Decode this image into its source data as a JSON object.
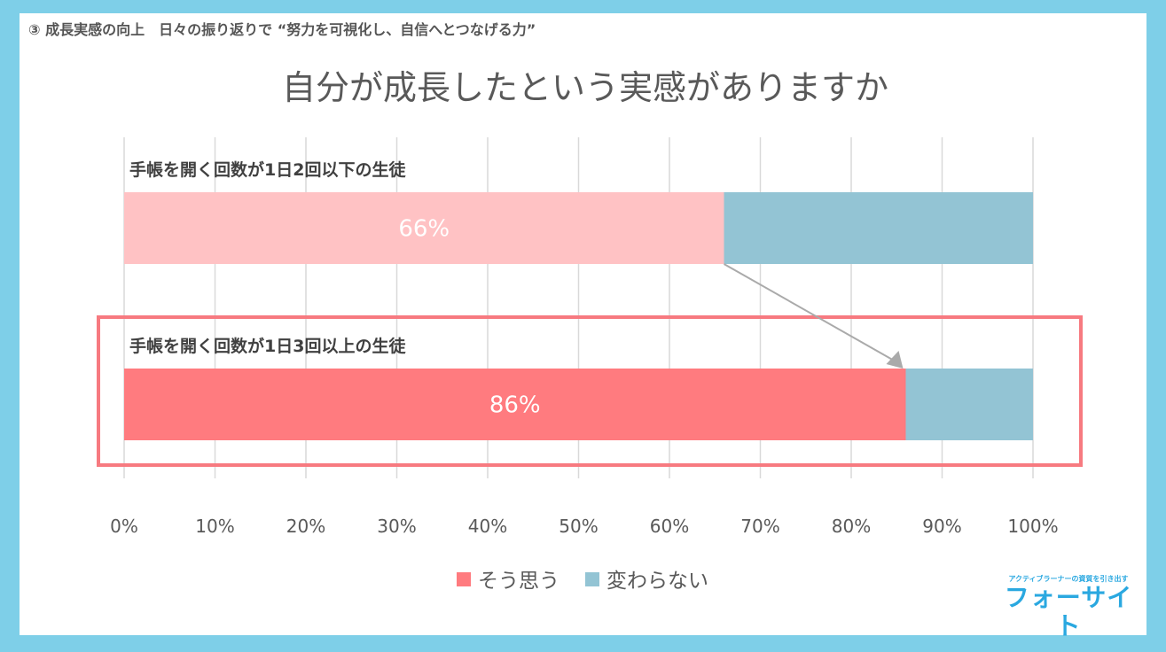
{
  "heading": "③ 成長実感の向上　日々の振り返りで “努力を可視化し、自信へとつなげる力”",
  "logo": {
    "tagline": "アクティブラーナーの資質を引き出す",
    "name": "フォーサイト"
  },
  "colors": {
    "frame": "#7ecfe8",
    "agree_light": "#ffc2c4",
    "agree": "#ff7b7f",
    "nochange": "#93c4d4",
    "highlight": "#f77a80"
  },
  "chart_data": {
    "type": "bar",
    "stacked": true,
    "orientation": "horizontal",
    "title": "自分が成長したという実感がありますか",
    "categories": [
      "手帳を開く回数が1日2回以下の生徒",
      "手帳を開く回数が1日3回以上の生徒"
    ],
    "series": [
      {
        "name": "そう思う",
        "values": [
          66,
          86
        ],
        "labels": [
          "66%",
          "86%"
        ]
      },
      {
        "name": "変わらない",
        "values": [
          34,
          14
        ]
      }
    ],
    "xlim": [
      0,
      100
    ],
    "xticks": [
      "0%",
      "10%",
      "20%",
      "30%",
      "40%",
      "50%",
      "60%",
      "70%",
      "80%",
      "90%",
      "100%"
    ],
    "grid": true,
    "legend": "bottom",
    "highlighted_category": 1
  }
}
